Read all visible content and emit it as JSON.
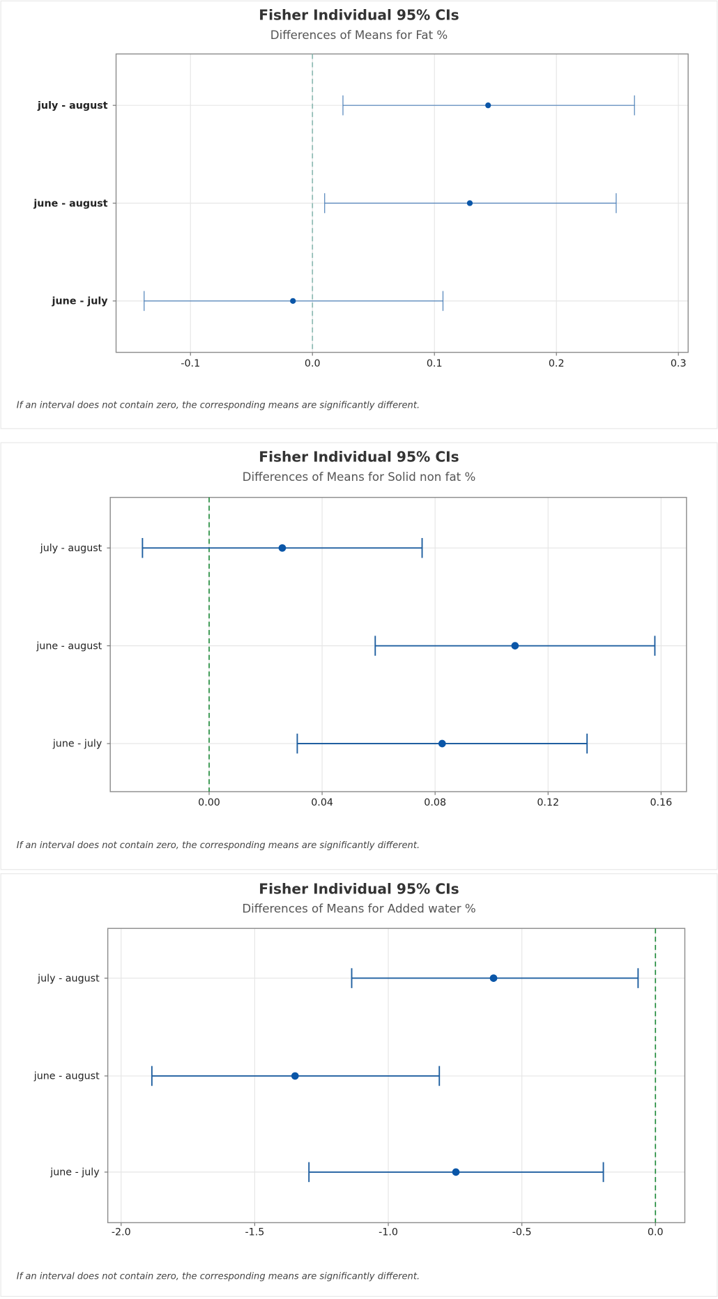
{
  "chart_data": [
    {
      "type": "interval",
      "title": "Fisher Individual 95% CIs",
      "subtitle": "Differences of Means for Fat %",
      "categories": [
        "july - august",
        "june - august",
        "june - july"
      ],
      "lower": [
        0.025,
        0.01,
        -0.138
      ],
      "estimate": [
        0.144,
        0.129,
        -0.016
      ],
      "upper": [
        0.264,
        0.249,
        0.107
      ],
      "xticks": [
        -0.1,
        0.0,
        0.1,
        0.2,
        0.3
      ],
      "xtick_labels": [
        "-0.1",
        "0.0",
        "0.1",
        "0.2",
        "0.3"
      ],
      "xlim": [
        -0.161,
        0.308
      ],
      "reference_line": 0,
      "grid": true,
      "ref_color": "#8ab8b0",
      "bar_color": "#4d80b8",
      "point_color": "#0a56a8",
      "footnote": "If an interval does not contain zero, the corresponding means are significantly different."
    },
    {
      "type": "interval",
      "title": "Fisher Individual 95% CIs",
      "subtitle": "Differences of Means for Solid non fat %",
      "categories": [
        "july - august",
        "june - august",
        "june - july"
      ],
      "lower": [
        -0.0236,
        0.0588,
        0.0312
      ],
      "estimate": [
        0.0259,
        0.1083,
        0.0825
      ],
      "upper": [
        0.0754,
        0.1578,
        0.1338
      ],
      "xticks": [
        0.0,
        0.04,
        0.08,
        0.12,
        0.16
      ],
      "xtick_labels": [
        "0.00",
        "0.04",
        "0.08",
        "0.12",
        "0.16"
      ],
      "xlim": [
        -0.035,
        0.169
      ],
      "reference_line": 0,
      "grid": true,
      "ref_color": "#1f8a3a",
      "bar_color": "#1f5fa0",
      "point_color": "#0a56a8",
      "footnote": "If an interval does not contain zero, the corresponding means are significantly different."
    },
    {
      "type": "interval",
      "title": "Fisher Individual 95% CIs",
      "subtitle": "Differences of Means for Added water %",
      "categories": [
        "july - august",
        "june - august",
        "june - july"
      ],
      "lower": [
        -1.137,
        -1.885,
        -1.297
      ],
      "estimate": [
        -0.606,
        -1.349,
        -0.747
      ],
      "upper": [
        -0.065,
        -0.809,
        -0.195
      ],
      "xticks": [
        -2.0,
        -1.5,
        -1.0,
        -0.5,
        0.0
      ],
      "xtick_labels": [
        "-2.0",
        "-1.5",
        "-1.0",
        "-0.5",
        "0.0"
      ],
      "xlim": [
        -2.05,
        0.11
      ],
      "reference_line": 0,
      "grid": true,
      "ref_color": "#1f8a3a",
      "bar_color": "#1f5fa0",
      "point_color": "#0a56a8",
      "footnote": "If an interval does not contain zero, the corresponding means are significantly different."
    }
  ]
}
